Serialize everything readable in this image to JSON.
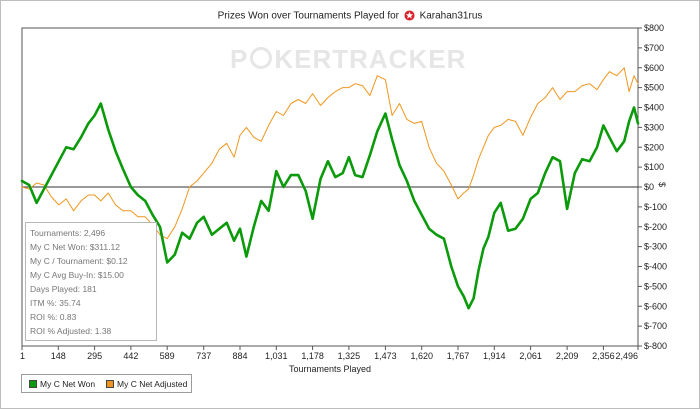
{
  "title": {
    "prefix": "Prizes Won over Tournaments Played for",
    "player": "Karahan31rus",
    "logo_icon": "pokerstars-star-icon"
  },
  "watermark": {
    "left": "P",
    "right": "KERTRACKER"
  },
  "stats": [
    "Tournaments: 2,496",
    "My C Net Won: $311.12",
    "My C / Tournament: $0.12",
    "My C Avg Buy-In: $15.00",
    "Days Played: 181",
    "ITM %: 35.74",
    "ROI %: 0.83",
    "ROI % Adjusted: 1.38"
  ],
  "legend": [
    {
      "label": "My C Net Won",
      "color": "#0a9a0a"
    },
    {
      "label": "My C Net Adjusted",
      "color": "#f0961e"
    }
  ],
  "chart_data": {
    "type": "line",
    "title": "Prizes Won over Tournaments Played for Karahan31rus",
    "xlabel": "Tournaments Played",
    "ylabel": "$",
    "xlim": [
      1,
      2496
    ],
    "ylim": [
      -800,
      800
    ],
    "x_ticks": [
      "1",
      "148",
      "295",
      "442",
      "589",
      "737",
      "884",
      "1,031",
      "1,178",
      "1,325",
      "1,473",
      "1,620",
      "1,767",
      "1,914",
      "2,061",
      "2,209",
      "2,356",
      "2,496"
    ],
    "x_tick_values": [
      1,
      148,
      295,
      442,
      589,
      737,
      884,
      1031,
      1178,
      1325,
      1473,
      1620,
      1767,
      1914,
      2061,
      2209,
      2356,
      2496
    ],
    "y_ticks": [
      "$800",
      "$700",
      "$600",
      "$500",
      "$400",
      "$300",
      "$200",
      "$100",
      "$0",
      "$-100",
      "$-200",
      "$-300",
      "$-400",
      "$-500",
      "$-600",
      "$-700",
      "$-800"
    ],
    "y_tick_values": [
      800,
      700,
      600,
      500,
      400,
      300,
      200,
      100,
      0,
      -100,
      -200,
      -300,
      -400,
      -500,
      -600,
      -700,
      -800
    ],
    "series": [
      {
        "name": "My C Net Won",
        "color": "#0a9a0a",
        "x": [
          1,
          30,
          60,
          90,
          120,
          150,
          180,
          210,
          240,
          270,
          295,
          320,
          350,
          380,
          410,
          442,
          470,
          500,
          530,
          560,
          589,
          620,
          650,
          680,
          710,
          737,
          770,
          800,
          830,
          860,
          884,
          910,
          940,
          970,
          1000,
          1031,
          1060,
          1090,
          1120,
          1150,
          1178,
          1210,
          1240,
          1270,
          1300,
          1325,
          1350,
          1380,
          1410,
          1440,
          1473,
          1500,
          1530,
          1560,
          1590,
          1620,
          1650,
          1680,
          1710,
          1740,
          1767,
          1790,
          1810,
          1830,
          1850,
          1870,
          1890,
          1914,
          1940,
          1970,
          2000,
          2030,
          2061,
          2090,
          2120,
          2150,
          2180,
          2209,
          2240,
          2270,
          2300,
          2330,
          2356,
          2380,
          2410,
          2440,
          2460,
          2480,
          2496
        ],
        "y": [
          30,
          10,
          -80,
          -10,
          60,
          130,
          200,
          190,
          250,
          320,
          360,
          420,
          290,
          180,
          90,
          0,
          -40,
          -70,
          -140,
          -200,
          -380,
          -340,
          -230,
          -260,
          -180,
          -150,
          -240,
          -210,
          -180,
          -270,
          -210,
          -350,
          -200,
          -70,
          -120,
          80,
          0,
          60,
          60,
          -20,
          -160,
          40,
          130,
          50,
          70,
          150,
          60,
          50,
          160,
          280,
          370,
          240,
          110,
          30,
          -70,
          -140,
          -210,
          -240,
          -260,
          -400,
          -500,
          -550,
          -610,
          -560,
          -420,
          -310,
          -250,
          -130,
          -80,
          -220,
          -210,
          -160,
          -60,
          -30,
          70,
          150,
          130,
          -110,
          70,
          140,
          130,
          200,
          310,
          250,
          180,
          230,
          330,
          400,
          320
        ]
      },
      {
        "name": "My C Net Adjusted",
        "color": "#f0961e",
        "x": [
          1,
          30,
          60,
          90,
          120,
          150,
          180,
          210,
          240,
          270,
          295,
          320,
          350,
          380,
          410,
          442,
          470,
          500,
          530,
          560,
          589,
          620,
          650,
          680,
          710,
          737,
          770,
          800,
          830,
          860,
          884,
          910,
          940,
          970,
          1000,
          1031,
          1060,
          1090,
          1120,
          1150,
          1178,
          1210,
          1240,
          1270,
          1300,
          1325,
          1350,
          1380,
          1410,
          1440,
          1473,
          1500,
          1530,
          1560,
          1590,
          1620,
          1650,
          1680,
          1710,
          1740,
          1767,
          1790,
          1810,
          1830,
          1850,
          1870,
          1890,
          1914,
          1940,
          1970,
          2000,
          2030,
          2061,
          2090,
          2120,
          2150,
          2180,
          2209,
          2240,
          2270,
          2300,
          2330,
          2356,
          2380,
          2410,
          2440,
          2460,
          2480,
          2496
        ],
        "y": [
          0,
          -10,
          20,
          10,
          -50,
          -90,
          -60,
          -120,
          -70,
          -40,
          -40,
          -70,
          -30,
          -90,
          -120,
          -120,
          -150,
          -150,
          -190,
          -240,
          -260,
          -200,
          -110,
          0,
          30,
          70,
          120,
          190,
          220,
          150,
          260,
          300,
          250,
          230,
          310,
          380,
          360,
          420,
          440,
          420,
          470,
          410,
          450,
          480,
          500,
          500,
          520,
          510,
          460,
          560,
          540,
          360,
          420,
          340,
          320,
          330,
          200,
          120,
          80,
          10,
          -60,
          -30,
          -10,
          60,
          140,
          200,
          260,
          300,
          310,
          340,
          330,
          260,
          350,
          420,
          450,
          500,
          440,
          480,
          480,
          510,
          520,
          490,
          540,
          580,
          560,
          600,
          480,
          560,
          520
        ]
      }
    ],
    "zero_line": true,
    "legend_position": "bottom-left"
  }
}
